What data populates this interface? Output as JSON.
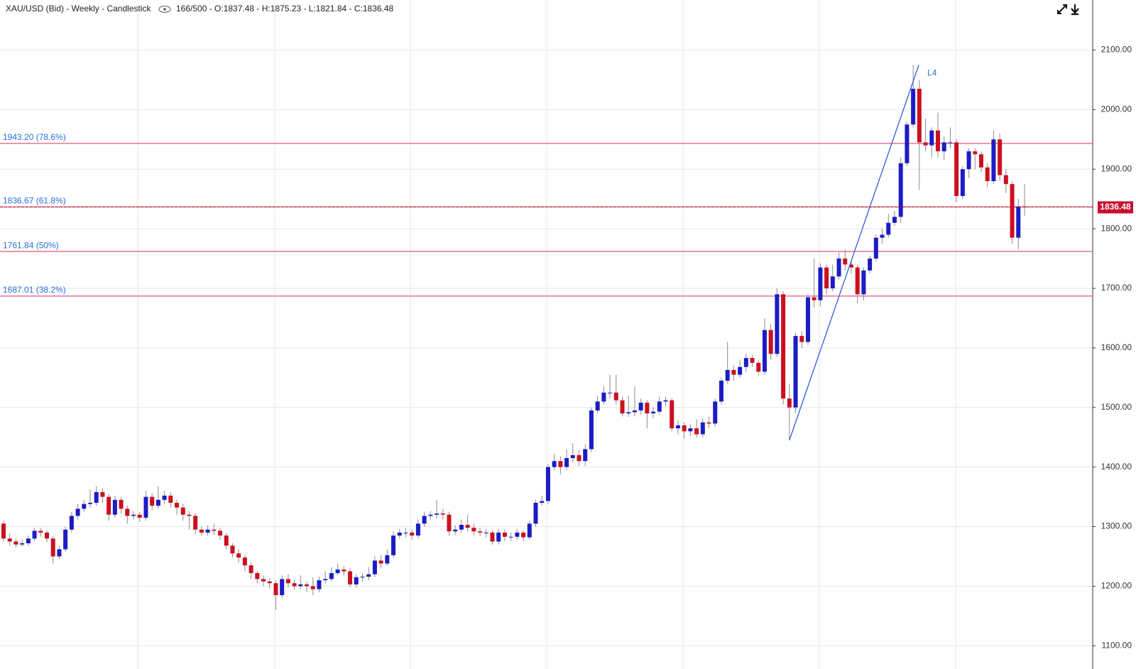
{
  "chart_data": {
    "type": "candlestick",
    "title": "XAU/USD (Bid) - Weekly - Candlestick",
    "info": "166/500 - O:1837.48 - H:1875.23 - L:1821.84 - C:1836.48",
    "annotation": "L4",
    "up_color": "#1c1cc4",
    "down_color": "#cc1020",
    "grid": true,
    "ylim": [
      1061,
      2184
    ],
    "yticks": [
      {
        "value": 1100,
        "label": "1100.00"
      },
      {
        "value": 1200,
        "label": "1200.00"
      },
      {
        "value": 1300,
        "label": "1300.00"
      },
      {
        "value": 1400,
        "label": "1400.00"
      },
      {
        "value": 1500,
        "label": "1500.00"
      },
      {
        "value": 1600,
        "label": "1600.00"
      },
      {
        "value": 1700,
        "label": "1700.00"
      },
      {
        "value": 1800,
        "label": "1800.00"
      },
      {
        "value": 1900,
        "label": "1900.00"
      },
      {
        "value": 2000,
        "label": "2000.00"
      },
      {
        "value": 2100,
        "label": "2100.00"
      }
    ],
    "fib_levels": [
      {
        "value": 1943.2,
        "label": "1943.20 (78.6%)"
      },
      {
        "value": 1836.67,
        "label": "1836.67 (61.8%)"
      },
      {
        "value": 1761.84,
        "label": "1761.84 (50%)"
      },
      {
        "value": 1687.01,
        "label": "1687.01 (38.2%)"
      }
    ],
    "last_price": {
      "value": 1836.48,
      "label": "1836.48"
    },
    "open": [
      1305,
      1280,
      1275,
      1270,
      1272,
      1280,
      1293,
      1290,
      1280,
      1250,
      1262,
      1295,
      1318,
      1330,
      1338,
      1340,
      1358,
      1350,
      1320,
      1345,
      1330,
      1318,
      1320,
      1315,
      1350,
      1335,
      1345,
      1352,
      1340,
      1332,
      1320,
      1318,
      1295,
      1290,
      1295,
      1293,
      1285,
      1268,
      1255,
      1248,
      1235,
      1222,
      1212,
      1208,
      1205,
      1185,
      1212,
      1205,
      1200,
      1203,
      1200,
      1195,
      1210,
      1212,
      1222,
      1228,
      1225,
      1203,
      1215,
      1216,
      1220,
      1243,
      1238,
      1252,
      1285,
      1290,
      1290,
      1285,
      1305,
      1318,
      1320,
      1322,
      1320,
      1292,
      1295,
      1303,
      1298,
      1292,
      1290,
      1290,
      1275,
      1290,
      1283,
      1283,
      1290,
      1282,
      1305,
      1340,
      1343,
      1400,
      1410,
      1400,
      1415,
      1420,
      1410,
      1430,
      1495,
      1510,
      1525,
      1525,
      1512,
      1490,
      1492,
      1495,
      1508,
      1490,
      1493,
      1510,
      1512,
      1465,
      1470,
      1460,
      1465,
      1455,
      1475,
      1473,
      1510,
      1545,
      1563,
      1555,
      1568,
      1583,
      1575,
      1560,
      1630,
      1590,
      1690,
      1515,
      1500,
      1620,
      1610,
      1685,
      1680,
      1735,
      1700,
      1720,
      1750,
      1740,
      1735,
      1690,
      1730,
      1750,
      1785,
      1790,
      1810,
      1820,
      1910,
      1975,
      2035,
      1945,
      1940,
      1965,
      1930,
      1945,
      1945,
      1855,
      1900,
      1930,
      1925,
      1903,
      1880,
      1950,
      1890,
      1875,
      1785,
      1837.48
    ],
    "high": [
      1310,
      1288,
      1280,
      1278,
      1285,
      1298,
      1298,
      1294,
      1284,
      1268,
      1300,
      1325,
      1338,
      1345,
      1362,
      1368,
      1365,
      1355,
      1352,
      1350,
      1336,
      1326,
      1325,
      1360,
      1356,
      1368,
      1360,
      1358,
      1345,
      1338,
      1326,
      1322,
      1300,
      1302,
      1305,
      1298,
      1290,
      1272,
      1262,
      1252,
      1240,
      1226,
      1218,
      1214,
      1210,
      1218,
      1220,
      1210,
      1218,
      1208,
      1215,
      1216,
      1225,
      1232,
      1238,
      1234,
      1230,
      1220,
      1222,
      1232,
      1250,
      1252,
      1262,
      1292,
      1296,
      1298,
      1295,
      1312,
      1325,
      1326,
      1345,
      1330,
      1325,
      1302,
      1312,
      1320,
      1305,
      1298,
      1296,
      1294,
      1296,
      1295,
      1290,
      1296,
      1294,
      1310,
      1345,
      1352,
      1405,
      1422,
      1418,
      1430,
      1440,
      1428,
      1438,
      1500,
      1520,
      1535,
      1555,
      1555,
      1518,
      1520,
      1535,
      1515,
      1512,
      1500,
      1518,
      1518,
      1516,
      1478,
      1475,
      1472,
      1480,
      1482,
      1485,
      1515,
      1550,
      1610,
      1570,
      1580,
      1590,
      1588,
      1580,
      1650,
      1640,
      1700,
      1695,
      1540,
      1625,
      1628,
      1690,
      1750,
      1742,
      1740,
      1740,
      1760,
      1765,
      1745,
      1740,
      1735,
      1755,
      1790,
      1800,
      1825,
      1830,
      1920,
      1980,
      2075,
      2050,
      1985,
      1970,
      1995,
      1955,
      1970,
      1950,
      1905,
      1935,
      1935,
      1930,
      1910,
      1965,
      1960,
      1900,
      1880,
      1850,
      1875.23
    ],
    "low": [
      1275,
      1268,
      1265,
      1266,
      1268,
      1276,
      1284,
      1274,
      1238,
      1246,
      1258,
      1290,
      1312,
      1325,
      1332,
      1335,
      1340,
      1310,
      1315,
      1322,
      1305,
      1312,
      1308,
      1310,
      1328,
      1330,
      1338,
      1332,
      1320,
      1310,
      1295,
      1288,
      1284,
      1285,
      1286,
      1278,
      1262,
      1248,
      1240,
      1225,
      1212,
      1205,
      1200,
      1196,
      1160,
      1180,
      1198,
      1194,
      1195,
      1190,
      1185,
      1190,
      1204,
      1208,
      1218,
      1218,
      1198,
      1198,
      1208,
      1210,
      1215,
      1230,
      1234,
      1248,
      1280,
      1282,
      1278,
      1280,
      1300,
      1312,
      1314,
      1312,
      1285,
      1286,
      1290,
      1292,
      1285,
      1284,
      1282,
      1270,
      1270,
      1276,
      1276,
      1278,
      1275,
      1278,
      1300,
      1335,
      1338,
      1395,
      1388,
      1395,
      1408,
      1402,
      1402,
      1425,
      1490,
      1505,
      1515,
      1505,
      1485,
      1484,
      1485,
      1488,
      1465,
      1482,
      1488,
      1502,
      1460,
      1455,
      1448,
      1452,
      1450,
      1450,
      1465,
      1468,
      1505,
      1540,
      1545,
      1550,
      1560,
      1568,
      1555,
      1555,
      1580,
      1585,
      1505,
      1445,
      1490,
      1600,
      1605,
      1668,
      1670,
      1690,
      1695,
      1715,
      1730,
      1725,
      1675,
      1680,
      1725,
      1745,
      1775,
      1785,
      1805,
      1810,
      1905,
      1970,
      1865,
      1930,
      1920,
      1920,
      1915,
      1935,
      1845,
      1850,
      1885,
      1900,
      1895,
      1870,
      1875,
      1880,
      1860,
      1775,
      1765,
      1821.84
    ],
    "close": [
      1280,
      1275,
      1270,
      1272,
      1280,
      1293,
      1290,
      1280,
      1250,
      1262,
      1295,
      1318,
      1330,
      1338,
      1340,
      1358,
      1350,
      1320,
      1345,
      1330,
      1318,
      1320,
      1315,
      1350,
      1335,
      1345,
      1352,
      1340,
      1332,
      1320,
      1318,
      1295,
      1290,
      1295,
      1293,
      1285,
      1268,
      1255,
      1248,
      1235,
      1222,
      1212,
      1208,
      1205,
      1185,
      1212,
      1205,
      1200,
      1203,
      1200,
      1195,
      1210,
      1212,
      1222,
      1228,
      1225,
      1203,
      1215,
      1216,
      1220,
      1243,
      1238,
      1252,
      1285,
      1290,
      1290,
      1285,
      1305,
      1318,
      1320,
      1322,
      1320,
      1292,
      1295,
      1303,
      1298,
      1292,
      1290,
      1290,
      1275,
      1290,
      1283,
      1283,
      1290,
      1282,
      1305,
      1340,
      1343,
      1400,
      1410,
      1400,
      1415,
      1420,
      1410,
      1430,
      1495,
      1510,
      1525,
      1525,
      1512,
      1490,
      1492,
      1495,
      1508,
      1490,
      1493,
      1510,
      1512,
      1465,
      1470,
      1460,
      1465,
      1455,
      1475,
      1473,
      1510,
      1545,
      1563,
      1555,
      1568,
      1583,
      1575,
      1560,
      1630,
      1590,
      1690,
      1515,
      1500,
      1620,
      1610,
      1685,
      1680,
      1735,
      1700,
      1720,
      1750,
      1740,
      1735,
      1690,
      1730,
      1750,
      1785,
      1790,
      1810,
      1820,
      1910,
      1975,
      2035,
      1945,
      1940,
      1965,
      1930,
      1945,
      1945,
      1855,
      1900,
      1930,
      1925,
      1903,
      1880,
      1950,
      1890,
      1875,
      1785,
      1837.48,
      1836.48
    ]
  }
}
